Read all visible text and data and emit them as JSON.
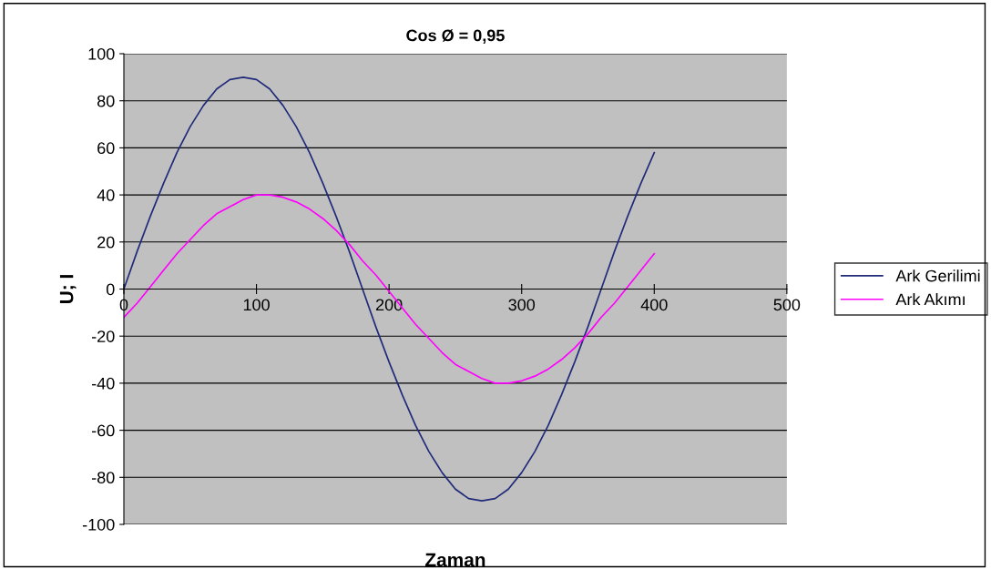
{
  "chart_data": {
    "type": "line",
    "title": "Cos Ø = 0,95",
    "xlabel": "Zaman",
    "ylabel": "U; I",
    "x": [
      0,
      10,
      20,
      30,
      40,
      50,
      60,
      70,
      80,
      90,
      100,
      110,
      120,
      130,
      140,
      150,
      160,
      170,
      180,
      190,
      200,
      210,
      220,
      230,
      240,
      250,
      260,
      270,
      280,
      290,
      300,
      310,
      320,
      330,
      340,
      350,
      360,
      370,
      380,
      390,
      400
    ],
    "series": [
      {
        "name": "Ark Gerilimi",
        "color": "#1f2a7a",
        "values": [
          0,
          16,
          31,
          45,
          58,
          69,
          78,
          85,
          89,
          90,
          89,
          85,
          78,
          69,
          58,
          45,
          31,
          16,
          0,
          -16,
          -31,
          -45,
          -58,
          -69,
          -78,
          -85,
          -89,
          -90,
          -89,
          -85,
          -78,
          -69,
          -58,
          -45,
          -31,
          -16,
          0,
          16,
          31,
          45,
          58
        ]
      },
      {
        "name": "Ark Akımı",
        "color": "#ff00ff",
        "values": [
          -12,
          -6,
          1,
          8,
          15,
          21,
          27,
          32,
          35,
          38,
          40,
          40,
          39,
          37,
          34,
          30,
          25,
          19,
          12,
          6,
          -1,
          -8,
          -15,
          -21,
          -27,
          -32,
          -35,
          -38,
          -40,
          -40,
          -39,
          -37,
          -34,
          -30,
          -25,
          -19,
          -12,
          -6,
          1,
          8,
          15
        ]
      }
    ],
    "xlim": [
      0,
      500
    ],
    "xticks": [
      0,
      100,
      200,
      300,
      400,
      500
    ],
    "ylim": [
      -100,
      100
    ],
    "yticks": [
      -100,
      -80,
      -60,
      -40,
      -20,
      0,
      20,
      40,
      60,
      80,
      100
    ],
    "grid": "y",
    "legend": "right",
    "marker": "none",
    "line_style": "solid"
  }
}
